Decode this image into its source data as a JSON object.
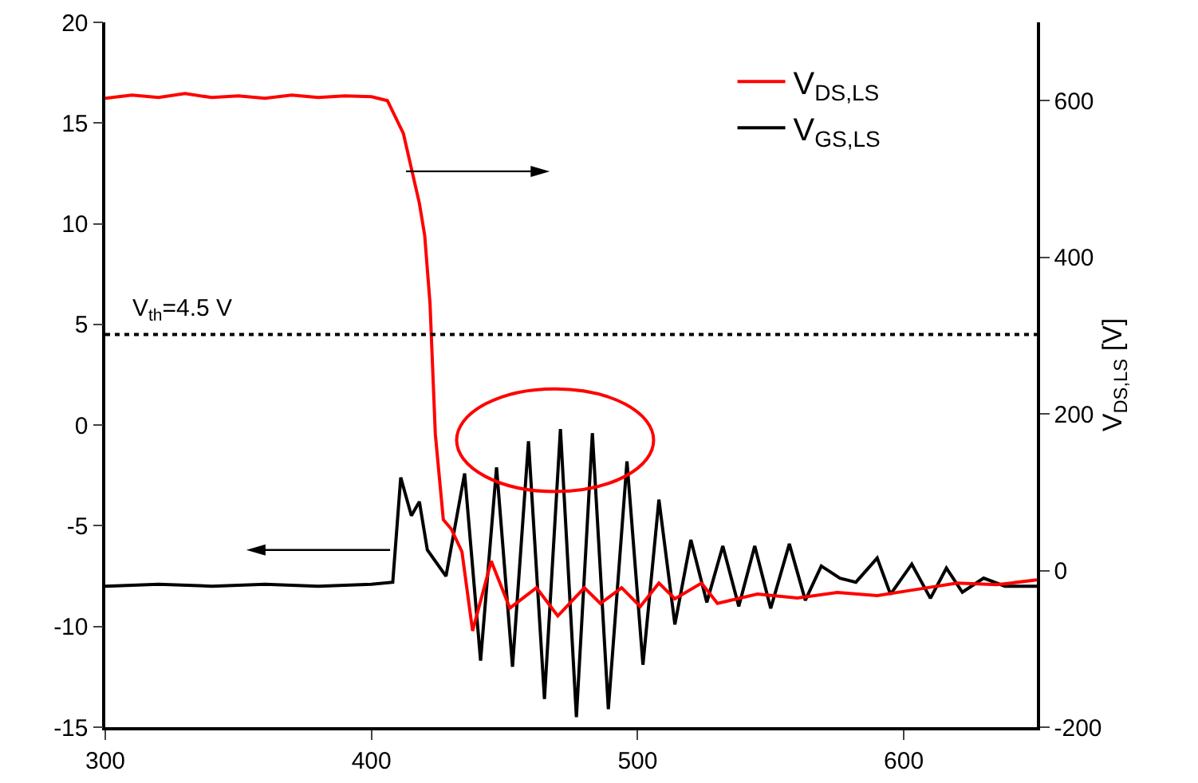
{
  "chart_data": {
    "type": "line",
    "xlim": [
      300,
      650
    ],
    "xticks": [
      300,
      400,
      500,
      600
    ],
    "ylim": [
      -15,
      20
    ],
    "yticks": [
      -15,
      -10,
      -5,
      0,
      5,
      10,
      15,
      20
    ],
    "y2lim": [
      -200,
      700
    ],
    "y2ticks": [
      -200,
      0,
      200,
      400,
      600
    ],
    "y2label": "V$_{DS,LS}$ [V]",
    "grid": false,
    "legend": "top right",
    "marker": "none",
    "line_style": "solid",
    "ref_lines": [
      {
        "axis": "y",
        "value": 4.5,
        "label": "V$_{th}$=4.5 V",
        "line_style": "dotted",
        "color": "#000000"
      }
    ],
    "series": [
      {
        "name": "V$_{DS,LS}$",
        "color": "#ff0000",
        "axis": "y2",
        "x": [
          300,
          310,
          320,
          330,
          340,
          350,
          360,
          370,
          380,
          390,
          400,
          406,
          412,
          418,
          420,
          422,
          424,
          427,
          430,
          434,
          438,
          445,
          452,
          462,
          470,
          480,
          486,
          494,
          501,
          508,
          514,
          524,
          530,
          545,
          560,
          575,
          590,
          605,
          620,
          635,
          650
        ],
        "values": [
          603,
          607,
          604,
          609,
          604,
          606,
          603,
          607,
          604,
          606,
          605,
          600,
          558,
          469,
          428,
          341,
          174,
          65,
          53,
          24,
          -77,
          12,
          -48,
          -22,
          -58,
          -22,
          -42,
          -22,
          -46,
          -16,
          -36,
          -16,
          -42,
          -30,
          -35,
          -28,
          -32,
          -24,
          -16,
          -18,
          -12
        ]
      },
      {
        "name": "V$_{GS,LS}$",
        "color": "#000000",
        "x": [
          300,
          320,
          340,
          360,
          380,
          400,
          408,
          411,
          415,
          418,
          421,
          428,
          435,
          441,
          447,
          453,
          459,
          465,
          471,
          477,
          483,
          489,
          496,
          502,
          508,
          514,
          520,
          526,
          532,
          538,
          544,
          550,
          557,
          563,
          569,
          576,
          582,
          590,
          595,
          603,
          610,
          616,
          622,
          630,
          638,
          650
        ],
        "values": [
          -8,
          -7.9,
          -8,
          -7.9,
          -8,
          -7.9,
          -7.8,
          -2.6,
          -4.5,
          -3.8,
          -6.2,
          -7.5,
          -2.4,
          -11.7,
          -2.1,
          -12,
          -0.8,
          -13.6,
          -0.2,
          -14.5,
          -0.4,
          -14.1,
          -1.8,
          -11.9,
          -3.7,
          -9.9,
          -5.7,
          -8.8,
          -6,
          -9,
          -6,
          -9.1,
          -5.9,
          -8.7,
          -7,
          -7.6,
          -7.8,
          -6.6,
          -8.4,
          -6.9,
          -8.6,
          -7.1,
          -8.3,
          -7.6,
          -8,
          -8
        ]
      }
    ]
  }
}
